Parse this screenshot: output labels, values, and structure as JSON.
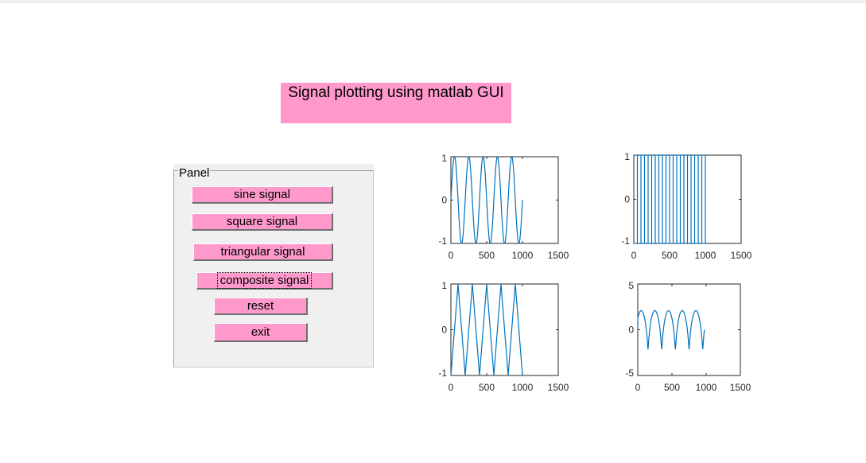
{
  "title": "Signal plotting using matlab GUI",
  "panel": {
    "title": "Panel",
    "buttons": {
      "sine": "sine signal",
      "square": "square signal",
      "triangular": "triangular signal",
      "composite": "composite signal",
      "reset": "reset",
      "exit": "exit"
    }
  },
  "colors": {
    "accent": "#ff99cc",
    "line": "#0072bd"
  },
  "chart_data": [
    {
      "type": "line",
      "name": "sine-plot",
      "xlim": [
        0,
        1500
      ],
      "ylim": [
        -1,
        1
      ],
      "xticks": [
        "0",
        "500",
        "1000",
        "1500"
      ],
      "yticks": [
        "-1",
        "0",
        "1"
      ],
      "signal": "sine",
      "period": 200,
      "x_range": [
        0,
        1000
      ]
    },
    {
      "type": "line",
      "name": "square-plot",
      "xlim": [
        0,
        1500
      ],
      "ylim": [
        -1,
        1
      ],
      "xticks": [
        "0",
        "500",
        "1000",
        "1500"
      ],
      "yticks": [
        "-1",
        "0",
        "1"
      ],
      "signal": "square",
      "period": 100,
      "x_range": [
        0,
        1000
      ]
    },
    {
      "type": "line",
      "name": "triangular-plot",
      "xlim": [
        0,
        1500
      ],
      "ylim": [
        -1,
        1
      ],
      "xticks": [
        "0",
        "500",
        "1000",
        "1500"
      ],
      "yticks": [
        "-1",
        "0",
        "1"
      ],
      "signal": "triangular",
      "period": 200,
      "x_range": [
        0,
        1000
      ]
    },
    {
      "type": "line",
      "name": "composite-plot",
      "xlim": [
        0,
        1500
      ],
      "ylim": [
        -5,
        5
      ],
      "xticks": [
        "0",
        "500",
        "1000",
        "1500"
      ],
      "yticks": [
        "-5",
        "0",
        "5"
      ],
      "signal": "composite",
      "period": 200,
      "amplitude": 2.2,
      "x_range": [
        0,
        1000
      ]
    }
  ]
}
